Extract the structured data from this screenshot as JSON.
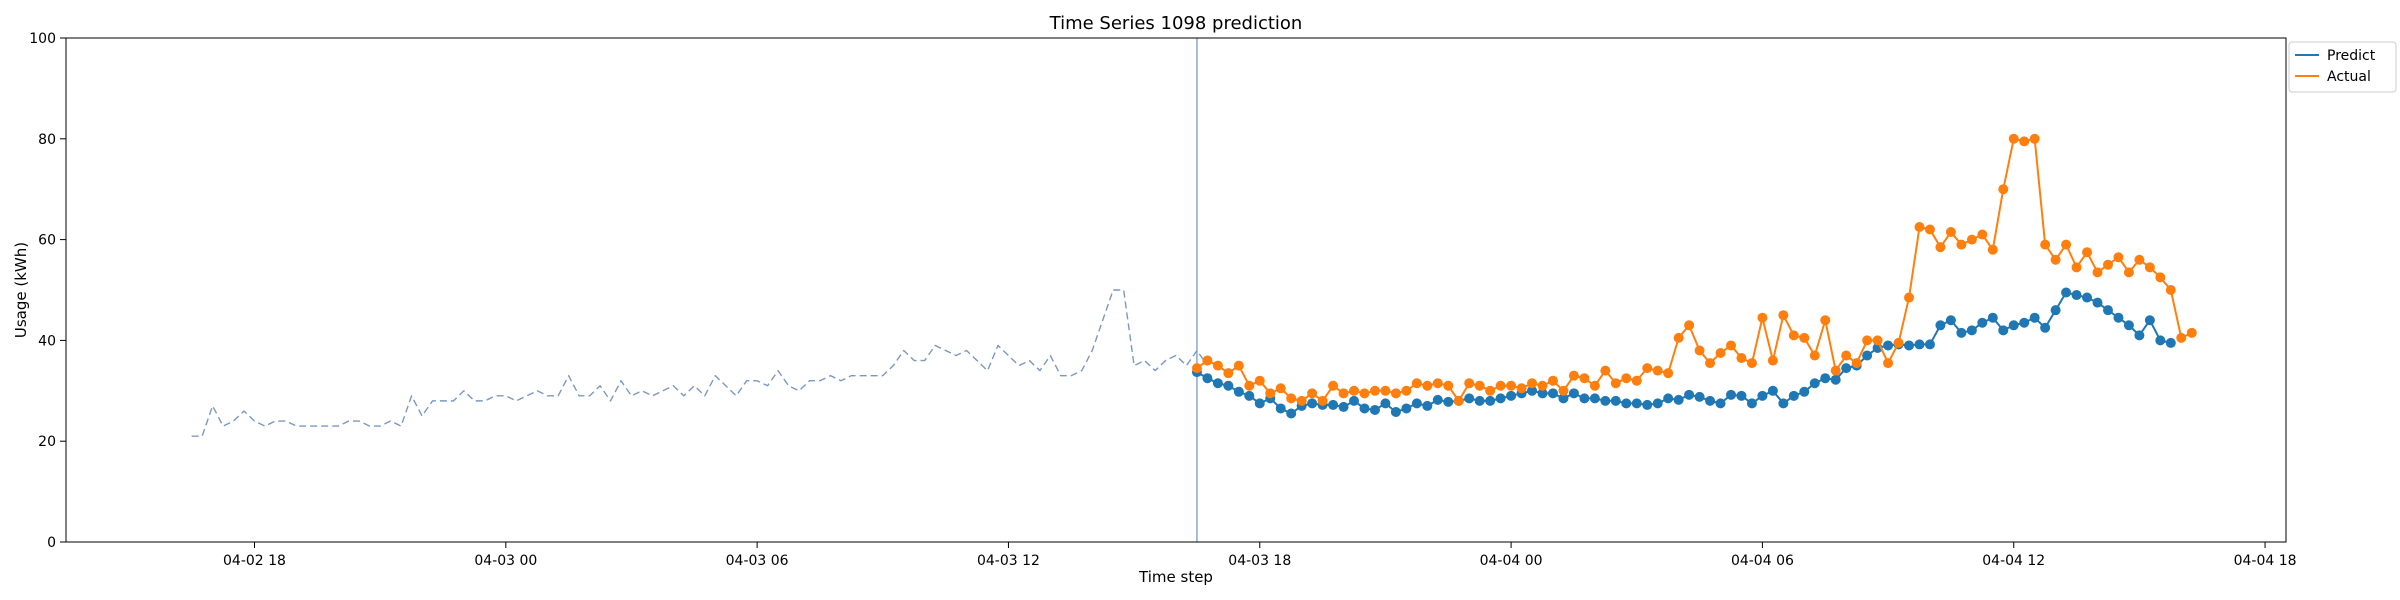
{
  "chart_data": {
    "type": "line",
    "title": "Time Series 1098 prediction",
    "xlabel": "Time step",
    "ylabel": "Usage (kWh)",
    "ylim": [
      0,
      100
    ],
    "yticks": [
      0,
      20,
      40,
      60,
      80,
      100
    ],
    "xlim": [
      "2024-04-02 13:30",
      "2024-04-04 18:30"
    ],
    "xticks": [
      {
        "t": "2024-04-02 18:00",
        "label": "04-02 18"
      },
      {
        "t": "2024-04-03 00:00",
        "label": "04-03 00"
      },
      {
        "t": "2024-04-03 06:00",
        "label": "04-03 06"
      },
      {
        "t": "2024-04-03 12:00",
        "label": "04-03 12"
      },
      {
        "t": "2024-04-03 18:00",
        "label": "04-03 18"
      },
      {
        "t": "2024-04-04 00:00",
        "label": "04-04 00"
      },
      {
        "t": "2024-04-04 06:00",
        "label": "04-04 06"
      },
      {
        "t": "2024-04-04 12:00",
        "label": "04-04 12"
      },
      {
        "t": "2024-04-04 18:00",
        "label": "04-04 18"
      }
    ],
    "step_minutes": 15,
    "grid": false,
    "legend_position": "upper-right, outside axes",
    "forecast_start": "2024-04-03 16:30",
    "series": [
      {
        "name": "",
        "style": "dashed",
        "color": "#7a98c5",
        "start": "2024-04-02 16:30",
        "values": [
          21,
          21,
          27,
          23,
          24,
          26,
          24,
          23,
          24,
          24,
          23,
          23,
          23,
          23,
          23,
          24,
          24,
          23,
          23,
          24,
          23,
          29,
          25,
          28,
          28,
          28,
          30,
          28,
          28,
          29,
          29,
          28,
          29,
          30,
          29,
          29,
          33,
          29,
          29,
          31,
          28,
          32,
          29,
          30,
          29,
          30,
          31,
          29,
          31,
          29,
          33,
          31,
          29,
          32,
          32,
          31,
          34,
          31,
          30,
          32,
          32,
          33,
          32,
          33,
          33,
          33,
          33,
          35,
          38,
          36,
          36,
          39,
          38,
          37,
          38,
          36,
          34,
          39,
          37,
          35,
          36,
          34,
          37,
          33,
          33,
          34,
          38,
          44,
          50,
          50,
          35,
          36,
          34,
          36,
          37,
          35,
          38,
          35
        ]
      },
      {
        "name": "Predict",
        "style": "line-markers",
        "color": "#1f77b4",
        "start": "2024-04-03 16:30",
        "values": [
          33.7,
          32.5,
          31.5,
          31,
          29.8,
          29,
          27.5,
          28.5,
          26.5,
          25.5,
          27,
          27.5,
          27.2,
          27.2,
          26.8,
          28,
          26.5,
          26.2,
          27.5,
          25.8,
          26.5,
          27.5,
          27,
          28.2,
          27.8,
          28,
          28.5,
          28,
          28,
          28.5,
          29,
          29.5,
          30,
          29.5,
          29.5,
          28.5,
          29.5,
          28.5,
          28.5,
          28,
          28,
          27.5,
          27.5,
          27.2,
          27.5,
          28.5,
          28.2,
          29.2,
          28.8,
          28,
          27.5,
          29.2,
          29,
          27.5,
          29,
          30,
          27.5,
          29,
          29.8,
          31.5,
          32.5,
          32.2,
          34.5,
          35,
          37,
          38.5,
          39,
          39.2,
          39,
          39.2,
          39.2,
          43,
          44,
          41.5,
          42,
          43.5,
          44.5,
          42,
          43,
          43.5,
          44.5,
          42.5,
          46,
          49.5,
          49,
          48.5,
          47.5,
          46,
          44.5,
          43,
          41,
          44,
          40,
          39.5
        ]
      },
      {
        "name": "Actual",
        "style": "line-markers",
        "color": "#ff7f0e",
        "start": "2024-04-03 16:30",
        "values": [
          34.5,
          36,
          35,
          33.5,
          35,
          31,
          32,
          29.5,
          30.5,
          28.5,
          28,
          29.5,
          28,
          31,
          29.5,
          30,
          29.5,
          30,
          30,
          29.5,
          30,
          31.5,
          31,
          31.5,
          31,
          28,
          31.5,
          31,
          30,
          31,
          31,
          30.5,
          31.5,
          31,
          32,
          30,
          33,
          32.5,
          31,
          34,
          31.5,
          32.5,
          32,
          34.5,
          34,
          33.5,
          40.5,
          43,
          38,
          35.5,
          37.5,
          39,
          36.5,
          35.5,
          44.5,
          36,
          45,
          41,
          40.5,
          37,
          44,
          34,
          37,
          35.5,
          40,
          40,
          35.5,
          39.5,
          48.5,
          62.5,
          62,
          58.5,
          61.5,
          59,
          60,
          61,
          58,
          70,
          80,
          79.5,
          80,
          59,
          56,
          59,
          54.5,
          57.5,
          53.5,
          55,
          56.5,
          53.5,
          56,
          54.5,
          52.5,
          50,
          40.5,
          41.5
        ]
      }
    ]
  }
}
